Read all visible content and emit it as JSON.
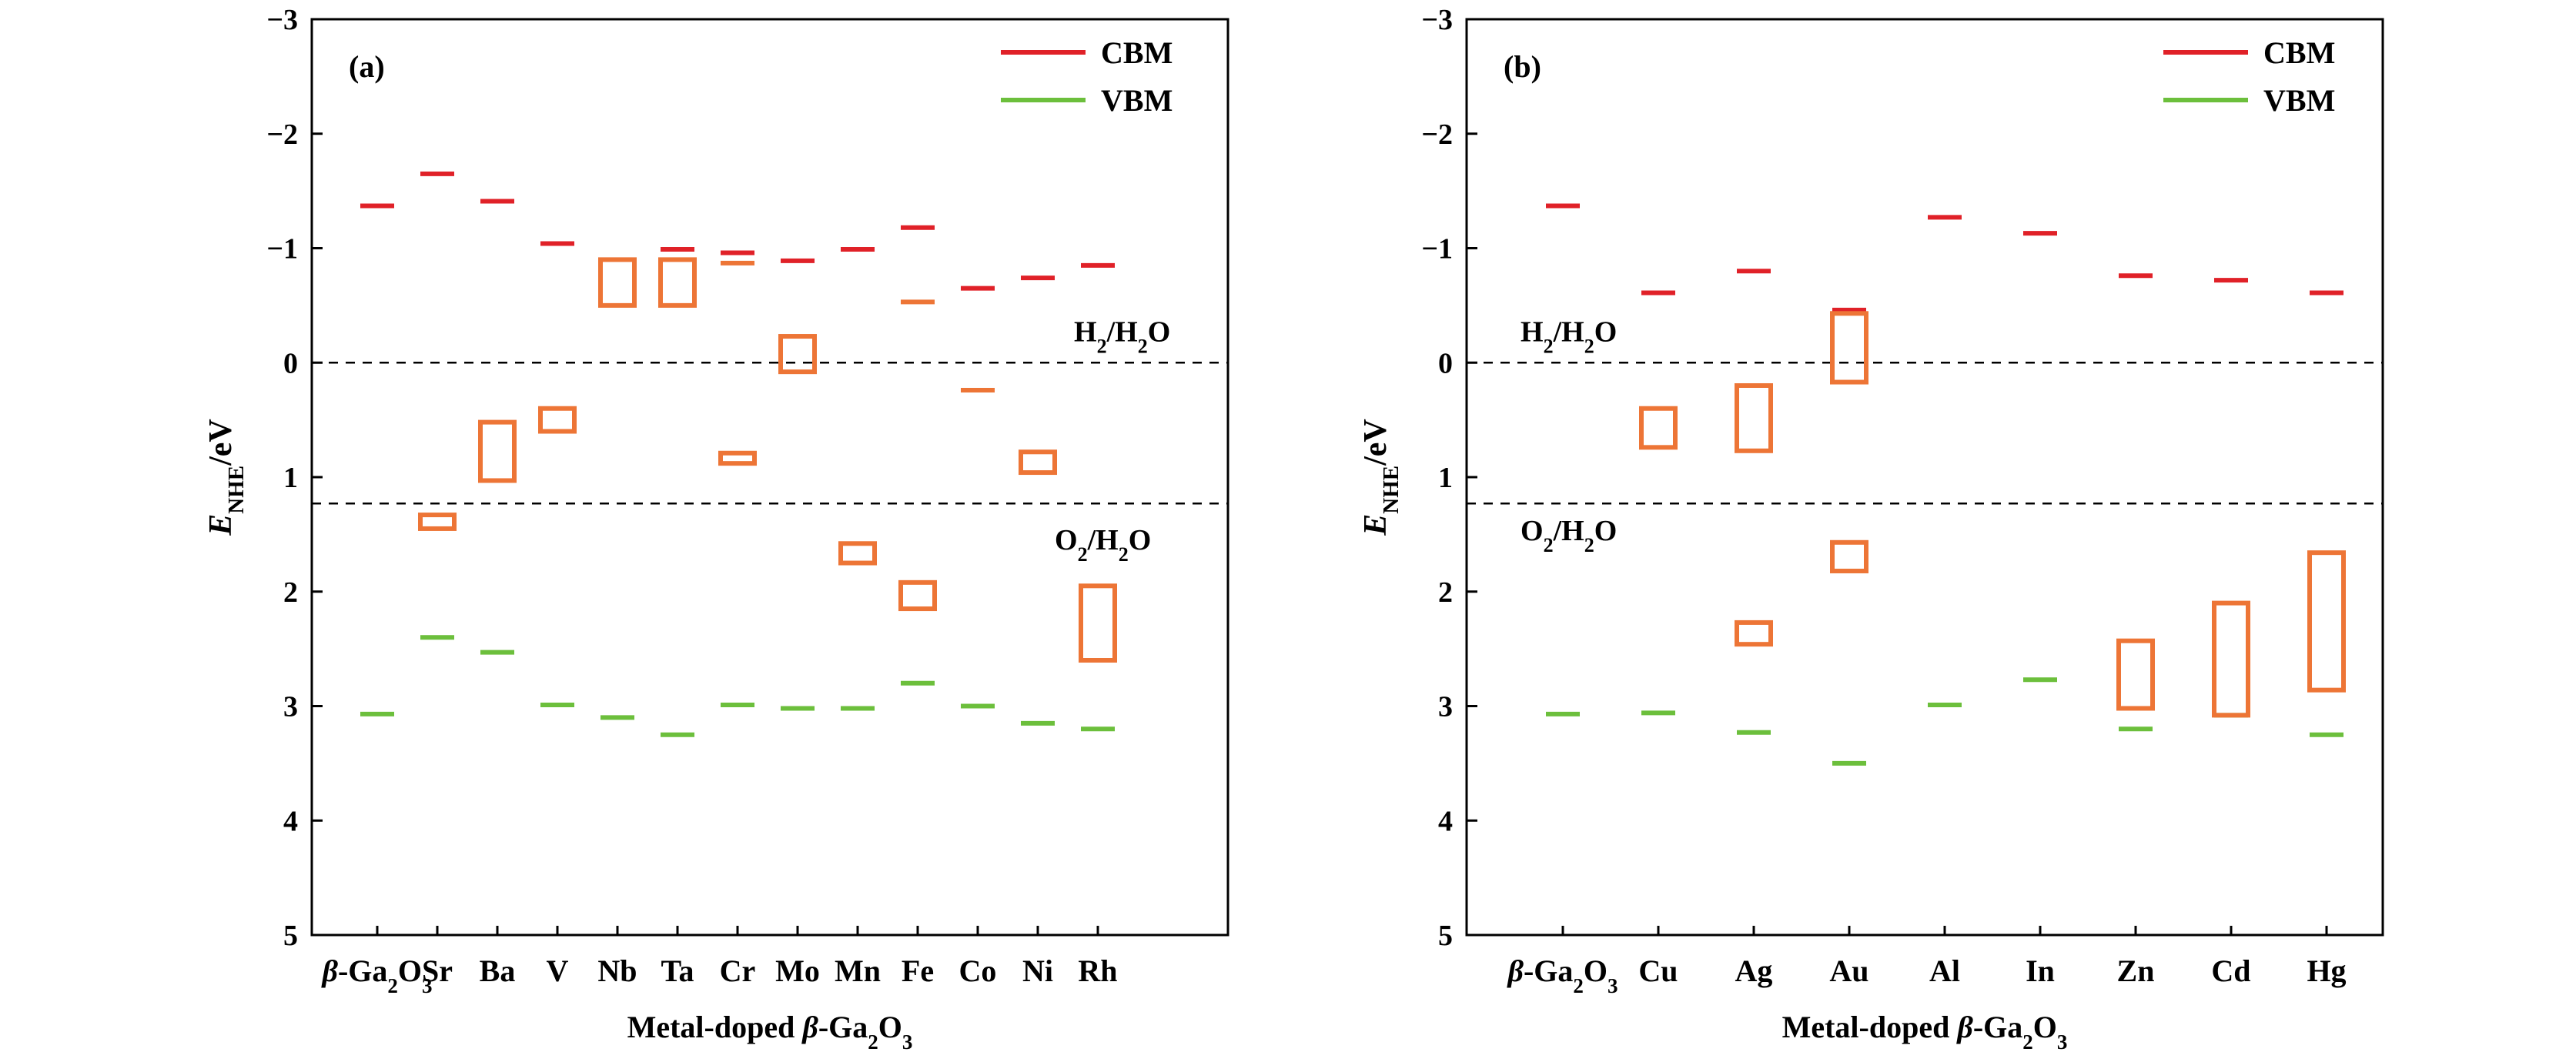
{
  "colors": {
    "cbm": "#e02128",
    "vbm": "#6cbf3c",
    "impurity": "#ed7536",
    "axis": "#000000"
  },
  "chart_data": [
    {
      "type": "band-edge",
      "panel_label": "(a)",
      "xlabel_parts": [
        "Metal-doped ",
        "β",
        "-Ga",
        "2",
        "O",
        "3"
      ],
      "ylabel_parts": [
        "E",
        "NHE",
        "/eV"
      ],
      "ylim": [
        -3,
        5
      ],
      "y_inverted": true,
      "yticks": [
        -3,
        -2,
        -1,
        0,
        1,
        2,
        3,
        4,
        5
      ],
      "ytick_labels": [
        "−3",
        "−2",
        "−1",
        "0",
        "1",
        "2",
        "3",
        "4",
        "5"
      ],
      "legend": [
        {
          "name": "CBM",
          "color": "#e02128"
        },
        {
          "name": "VBM",
          "color": "#6cbf3c"
        }
      ],
      "reference_lines": [
        {
          "value": 0,
          "label_parts": [
            "H",
            "2",
            "/H",
            "2",
            "O"
          ]
        },
        {
          "value": 1.23,
          "label_parts": [
            "O",
            "2",
            "/H",
            "2",
            "O"
          ]
        }
      ],
      "categories": [
        {
          "label_parts": [
            "β",
            "-Ga",
            "2",
            "O",
            "3"
          ],
          "cbm": -1.37,
          "vbm": 3.07,
          "impurity": []
        },
        {
          "label_parts": [
            "Sr"
          ],
          "cbm": -1.65,
          "vbm": 2.4,
          "impurity": [
            [
              1.33,
              1.45
            ]
          ]
        },
        {
          "label_parts": [
            "Ba"
          ],
          "cbm": -1.41,
          "vbm": 2.53,
          "impurity": [
            [
              0.52,
              1.03
            ]
          ]
        },
        {
          "label_parts": [
            "V"
          ],
          "cbm": -1.04,
          "vbm": 2.99,
          "impurity": [
            [
              0.4,
              0.6
            ]
          ]
        },
        {
          "label_parts": [
            "Nb"
          ],
          "cbm": null,
          "vbm": 3.1,
          "impurity": [
            [
              -0.9,
              -0.5
            ]
          ]
        },
        {
          "label_parts": [
            "Ta"
          ],
          "cbm": -0.99,
          "vbm": 3.25,
          "impurity": [
            [
              -0.9,
              -0.5
            ]
          ]
        },
        {
          "label_parts": [
            "Cr"
          ],
          "cbm": -0.96,
          "vbm": 2.99,
          "impurity": [
            [
              -0.87,
              -0.87
            ],
            [
              0.79,
              0.88
            ]
          ]
        },
        {
          "label_parts": [
            "Mo"
          ],
          "cbm": -0.89,
          "vbm": 3.02,
          "impurity": [
            [
              -0.23,
              0.08
            ]
          ]
        },
        {
          "label_parts": [
            "Mn"
          ],
          "cbm": -0.99,
          "vbm": 3.02,
          "impurity": [
            [
              1.58,
              1.75
            ]
          ]
        },
        {
          "label_parts": [
            "Fe"
          ],
          "cbm": -1.18,
          "vbm": 2.8,
          "impurity": [
            [
              -0.53,
              -0.53
            ],
            [
              1.92,
              2.15
            ]
          ]
        },
        {
          "label_parts": [
            "Co"
          ],
          "cbm": -0.65,
          "vbm": 3.0,
          "impurity": [
            [
              0.24,
              0.24
            ]
          ]
        },
        {
          "label_parts": [
            "Ni"
          ],
          "cbm": -0.74,
          "vbm": 3.15,
          "impurity": [
            [
              0.78,
              0.96
            ]
          ]
        },
        {
          "label_parts": [
            "Rh"
          ],
          "cbm": -0.85,
          "vbm": 3.2,
          "impurity": [
            [
              1.95,
              2.6
            ]
          ]
        }
      ]
    },
    {
      "type": "band-edge",
      "panel_label": "(b)",
      "xlabel_parts": [
        "Metal-doped ",
        "β",
        "-Ga",
        "2",
        "O",
        "3"
      ],
      "ylabel_parts": [
        "E",
        "NHE",
        "/eV"
      ],
      "ylim": [
        -3,
        5
      ],
      "y_inverted": true,
      "yticks": [
        -3,
        -2,
        -1,
        0,
        1,
        2,
        3,
        4,
        5
      ],
      "ytick_labels": [
        "−3",
        "−2",
        "−1",
        "0",
        "1",
        "2",
        "3",
        "4",
        "5"
      ],
      "legend": [
        {
          "name": "CBM",
          "color": "#e02128"
        },
        {
          "name": "VBM",
          "color": "#6cbf3c"
        }
      ],
      "reference_lines": [
        {
          "value": 0,
          "label_parts": [
            "H",
            "2",
            "/H",
            "2",
            "O"
          ]
        },
        {
          "value": 1.23,
          "label_parts": [
            "O",
            "2",
            "/H",
            "2",
            "O"
          ]
        }
      ],
      "categories": [
        {
          "label_parts": [
            "β",
            "-Ga",
            "2",
            "O",
            "3"
          ],
          "cbm": -1.37,
          "vbm": 3.07,
          "impurity": []
        },
        {
          "label_parts": [
            "Cu"
          ],
          "cbm": -0.61,
          "vbm": 3.06,
          "impurity": [
            [
              0.4,
              0.74
            ]
          ]
        },
        {
          "label_parts": [
            "Ag"
          ],
          "cbm": -0.8,
          "vbm": 3.23,
          "impurity": [
            [
              0.2,
              0.77
            ],
            [
              2.27,
              2.46
            ]
          ]
        },
        {
          "label_parts": [
            "Au"
          ],
          "cbm": -0.46,
          "vbm": 3.5,
          "impurity": [
            [
              -0.43,
              0.17
            ],
            [
              1.57,
              1.82
            ]
          ]
        },
        {
          "label_parts": [
            "Al"
          ],
          "cbm": -1.27,
          "vbm": 2.99,
          "impurity": []
        },
        {
          "label_parts": [
            "In"
          ],
          "cbm": -1.13,
          "vbm": 2.77,
          "impurity": []
        },
        {
          "label_parts": [
            "Zn"
          ],
          "cbm": -0.76,
          "vbm": 3.2,
          "impurity": [
            [
              2.43,
              3.02
            ]
          ]
        },
        {
          "label_parts": [
            "Cd"
          ],
          "cbm": -0.72,
          "vbm": 3.08,
          "impurity": [
            [
              2.1,
              3.08
            ]
          ]
        },
        {
          "label_parts": [
            "Hg"
          ],
          "cbm": -0.61,
          "vbm": 3.25,
          "impurity": [
            [
              1.66,
              2.86
            ]
          ]
        }
      ]
    }
  ]
}
